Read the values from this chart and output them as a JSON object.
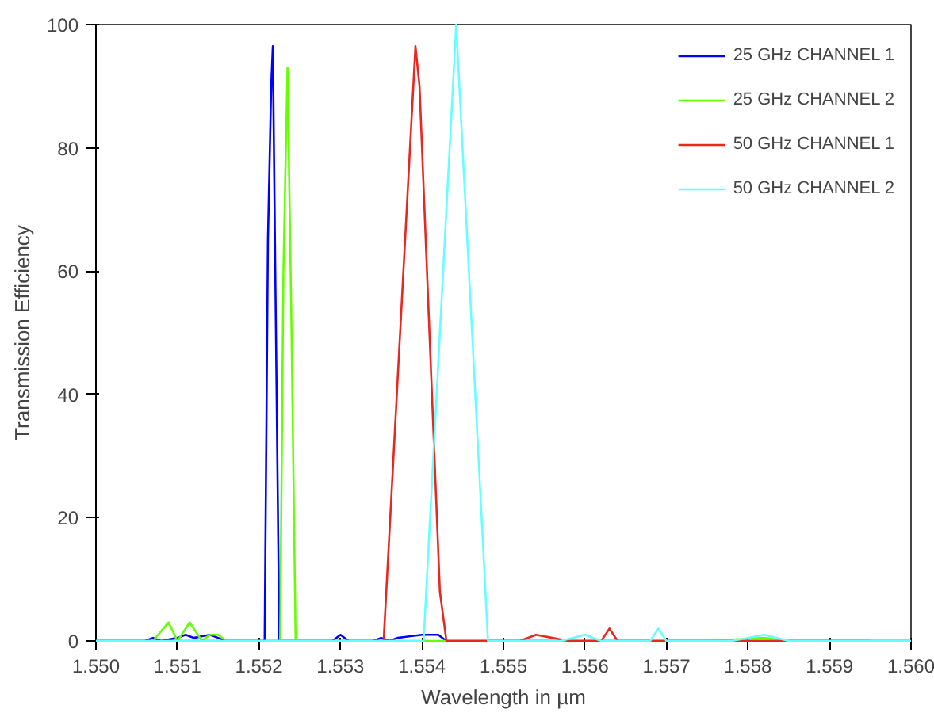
{
  "chart_data": {
    "type": "line",
    "xlabel": "Wavelength in µm",
    "ylabel": "Transmission Efficiency",
    "xlim": [
      1.55,
      1.56
    ],
    "ylim": [
      0,
      100
    ],
    "xticks": [
      {
        "value": 1.55,
        "label": "1.550"
      },
      {
        "value": 1.551,
        "label": "1.551"
      },
      {
        "value": 1.552,
        "label": "1.552"
      },
      {
        "value": 1.553,
        "label": "1.553"
      },
      {
        "value": 1.554,
        "label": "1.554"
      },
      {
        "value": 1.555,
        "label": "1.555"
      },
      {
        "value": 1.556,
        "label": "1.556"
      },
      {
        "value": 1.557,
        "label": "1.557"
      },
      {
        "value": 1.558,
        "label": "1.558"
      },
      {
        "value": 1.559,
        "label": "1.559"
      },
      {
        "value": 1.56,
        "label": "1.560"
      }
    ],
    "yticks": [
      0,
      20,
      40,
      60,
      80,
      100
    ],
    "grid": false,
    "legend": "top right",
    "line_style": "solid",
    "marker": "none",
    "series": [
      {
        "name": "25 GHz CHANNEL 1",
        "color": "#0000ff",
        "x": [
          1.55,
          1.5506,
          1.5507,
          1.5508,
          1.551,
          1.5511,
          1.5512,
          1.5514,
          1.5515,
          1.5516,
          1.55207,
          1.55211,
          1.55215,
          1.55217,
          1.5522,
          1.55225,
          1.5523,
          1.5529,
          1.553,
          1.5531,
          1.5534,
          1.5535,
          1.5536,
          1.5537,
          1.554,
          1.5541,
          1.5542,
          1.5543,
          1.56
        ],
        "values": [
          0,
          0,
          0.5,
          0,
          0.5,
          1,
          0.5,
          1,
          0.5,
          0,
          0,
          65,
          90,
          96.5,
          60,
          0,
          0,
          0,
          1,
          0,
          0,
          0.5,
          0,
          0.5,
          1,
          1,
          1,
          0,
          0
        ]
      },
      {
        "name": "25 GHz CHANNEL 2",
        "color": "#66ff00",
        "x": [
          1.55,
          1.5507,
          1.55089,
          1.551,
          1.55115,
          1.5513,
          1.5514,
          1.5515,
          1.5516,
          1.55226,
          1.5523,
          1.55235,
          1.5524,
          1.55245,
          1.5525,
          1.556,
          1.5575,
          1.5582,
          1.5585,
          1.5594,
          1.56
        ],
        "values": [
          0,
          0,
          3,
          0,
          3,
          0,
          1,
          1,
          0,
          0,
          60,
          93,
          50,
          0,
          0,
          0,
          0,
          0.5,
          0,
          0,
          0
        ]
      },
      {
        "name": "50 GHz CHANNEL 1",
        "color": "#e8271e",
        "x": [
          1.55,
          1.55353,
          1.55392,
          1.55397,
          1.55422,
          1.5543,
          1.5548,
          1.5552,
          1.5554,
          1.5556,
          1.5558,
          1.5562,
          1.5563,
          1.5564,
          1.5595
        ],
        "values": [
          0,
          0,
          96.5,
          90,
          8,
          0,
          0,
          0,
          1,
          0.5,
          0,
          0,
          2,
          0,
          0
        ]
      },
      {
        "name": "50 GHz CHANNEL 2",
        "color": "#66ffff",
        "x": [
          1.55,
          1.55402,
          1.55442,
          1.55481,
          1.5557,
          1.556,
          1.5562,
          1.5568,
          1.5569,
          1.557,
          1.5578,
          1.5582,
          1.5585,
          1.56
        ],
        "values": [
          0,
          0,
          100,
          0,
          0,
          1,
          0,
          0,
          2,
          0,
          0,
          1,
          0,
          0
        ]
      }
    ]
  }
}
